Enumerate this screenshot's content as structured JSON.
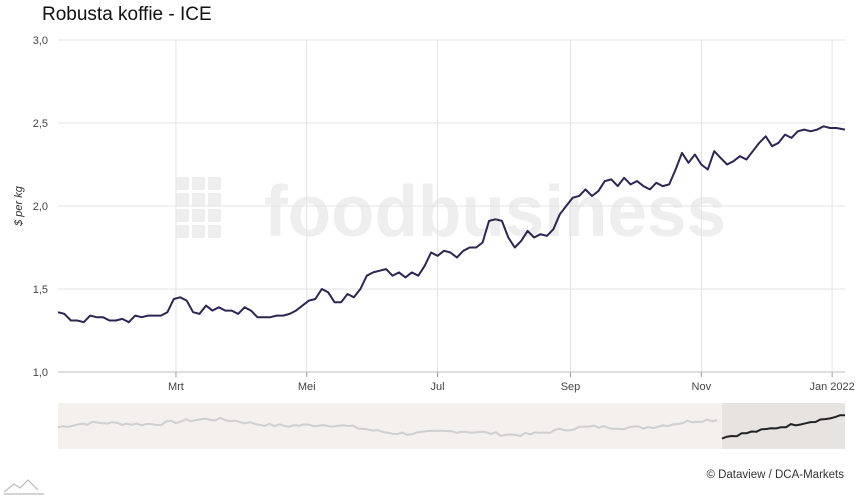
{
  "header": {
    "title": "Robusta koffie - ICE"
  },
  "watermark": {
    "text": "foodbusiness"
  },
  "footer": {
    "credit": "© Dataview / DCA-Markets"
  },
  "colors": {
    "line": "#2f2552",
    "grid": "#e3e3e3",
    "navigator_bg": "#f3f0ee",
    "navigator_selected": "#e6e3e1",
    "navigator_line_dim": "#cfcfcf",
    "navigator_line_sel": "#222222"
  },
  "chart_data": {
    "type": "line",
    "title": "Robusta koffie - ICE",
    "ylabel": "$ per kg",
    "xlabel": "",
    "ylim": [
      1.0,
      3.0
    ],
    "y_ticks": [
      "1,0",
      "1,5",
      "2,0",
      "2,5",
      "3,0"
    ],
    "y_tick_values": [
      1.0,
      1.5,
      2.0,
      2.5,
      3.0
    ],
    "x_range": [
      "2021-01-05",
      "2022-01-07"
    ],
    "x_ticks": [
      {
        "label": "Mrt",
        "date": "2021-03-01"
      },
      {
        "label": "Mei",
        "date": "2021-05-01"
      },
      {
        "label": "Jul",
        "date": "2021-07-01"
      },
      {
        "label": "Sep",
        "date": "2021-09-01"
      },
      {
        "label": "Nov",
        "date": "2021-11-01"
      },
      {
        "label": "Jan 2022",
        "date": "2022-01-01"
      }
    ],
    "grid": true,
    "legend": "none",
    "series": [
      {
        "values": [
          [
            "2021-01-05",
            1.36
          ],
          [
            "2021-01-08",
            1.35
          ],
          [
            "2021-01-11",
            1.31
          ],
          [
            "2021-01-14",
            1.31
          ],
          [
            "2021-01-17",
            1.3
          ],
          [
            "2021-01-20",
            1.34
          ],
          [
            "2021-01-23",
            1.33
          ],
          [
            "2021-01-26",
            1.33
          ],
          [
            "2021-01-29",
            1.31
          ],
          [
            "2021-02-01",
            1.31
          ],
          [
            "2021-02-04",
            1.32
          ],
          [
            "2021-02-07",
            1.3
          ],
          [
            "2021-02-10",
            1.34
          ],
          [
            "2021-02-13",
            1.33
          ],
          [
            "2021-02-16",
            1.34
          ],
          [
            "2021-02-19",
            1.34
          ],
          [
            "2021-02-22",
            1.34
          ],
          [
            "2021-02-25",
            1.36
          ],
          [
            "2021-02-28",
            1.44
          ],
          [
            "2021-03-03",
            1.45
          ],
          [
            "2021-03-06",
            1.43
          ],
          [
            "2021-03-09",
            1.36
          ],
          [
            "2021-03-12",
            1.35
          ],
          [
            "2021-03-15",
            1.4
          ],
          [
            "2021-03-18",
            1.37
          ],
          [
            "2021-03-21",
            1.39
          ],
          [
            "2021-03-24",
            1.37
          ],
          [
            "2021-03-27",
            1.37
          ],
          [
            "2021-03-30",
            1.35
          ],
          [
            "2021-04-02",
            1.39
          ],
          [
            "2021-04-05",
            1.37
          ],
          [
            "2021-04-08",
            1.33
          ],
          [
            "2021-04-11",
            1.33
          ],
          [
            "2021-04-14",
            1.33
          ],
          [
            "2021-04-17",
            1.34
          ],
          [
            "2021-04-20",
            1.34
          ],
          [
            "2021-04-23",
            1.35
          ],
          [
            "2021-04-26",
            1.37
          ],
          [
            "2021-04-29",
            1.4
          ],
          [
            "2021-05-02",
            1.43
          ],
          [
            "2021-05-05",
            1.44
          ],
          [
            "2021-05-08",
            1.5
          ],
          [
            "2021-05-11",
            1.48
          ],
          [
            "2021-05-14",
            1.42
          ],
          [
            "2021-05-17",
            1.42
          ],
          [
            "2021-05-20",
            1.47
          ],
          [
            "2021-05-23",
            1.45
          ],
          [
            "2021-05-26",
            1.5
          ],
          [
            "2021-05-29",
            1.58
          ],
          [
            "2021-06-01",
            1.6
          ],
          [
            "2021-06-04",
            1.61
          ],
          [
            "2021-06-07",
            1.62
          ],
          [
            "2021-06-10",
            1.58
          ],
          [
            "2021-06-13",
            1.6
          ],
          [
            "2021-06-16",
            1.57
          ],
          [
            "2021-06-19",
            1.6
          ],
          [
            "2021-06-22",
            1.58
          ],
          [
            "2021-06-25",
            1.64
          ],
          [
            "2021-06-28",
            1.72
          ],
          [
            "2021-07-01",
            1.7
          ],
          [
            "2021-07-04",
            1.73
          ],
          [
            "2021-07-07",
            1.72
          ],
          [
            "2021-07-10",
            1.69
          ],
          [
            "2021-07-13",
            1.73
          ],
          [
            "2021-07-16",
            1.75
          ],
          [
            "2021-07-19",
            1.75
          ],
          [
            "2021-07-22",
            1.78
          ],
          [
            "2021-07-25",
            1.91
          ],
          [
            "2021-07-28",
            1.92
          ],
          [
            "2021-07-31",
            1.91
          ],
          [
            "2021-08-03",
            1.81
          ],
          [
            "2021-08-06",
            1.75
          ],
          [
            "2021-08-09",
            1.79
          ],
          [
            "2021-08-12",
            1.85
          ],
          [
            "2021-08-15",
            1.81
          ],
          [
            "2021-08-18",
            1.83
          ],
          [
            "2021-08-21",
            1.82
          ],
          [
            "2021-08-24",
            1.86
          ],
          [
            "2021-08-27",
            1.95
          ],
          [
            "2021-08-30",
            2.0
          ],
          [
            "2021-09-02",
            2.05
          ],
          [
            "2021-09-05",
            2.06
          ],
          [
            "2021-09-08",
            2.1
          ],
          [
            "2021-09-11",
            2.06
          ],
          [
            "2021-09-14",
            2.09
          ],
          [
            "2021-09-17",
            2.15
          ],
          [
            "2021-09-20",
            2.16
          ],
          [
            "2021-09-23",
            2.12
          ],
          [
            "2021-09-26",
            2.17
          ],
          [
            "2021-09-29",
            2.13
          ],
          [
            "2021-10-02",
            2.15
          ],
          [
            "2021-10-05",
            2.12
          ],
          [
            "2021-10-08",
            2.1
          ],
          [
            "2021-10-11",
            2.14
          ],
          [
            "2021-10-14",
            2.12
          ],
          [
            "2021-10-17",
            2.13
          ],
          [
            "2021-10-20",
            2.22
          ],
          [
            "2021-10-23",
            2.32
          ],
          [
            "2021-10-26",
            2.26
          ],
          [
            "2021-10-29",
            2.31
          ],
          [
            "2021-11-01",
            2.25
          ],
          [
            "2021-11-04",
            2.22
          ],
          [
            "2021-11-07",
            2.33
          ],
          [
            "2021-11-10",
            2.29
          ],
          [
            "2021-11-13",
            2.25
          ],
          [
            "2021-11-16",
            2.27
          ],
          [
            "2021-11-19",
            2.3
          ],
          [
            "2021-11-22",
            2.28
          ],
          [
            "2021-11-25",
            2.33
          ],
          [
            "2021-11-28",
            2.38
          ],
          [
            "2021-12-01",
            2.42
          ],
          [
            "2021-12-04",
            2.36
          ],
          [
            "2021-12-07",
            2.38
          ],
          [
            "2021-12-10",
            2.43
          ],
          [
            "2021-12-13",
            2.41
          ],
          [
            "2021-12-16",
            2.45
          ],
          [
            "2021-12-19",
            2.46
          ],
          [
            "2021-12-22",
            2.45
          ],
          [
            "2021-12-25",
            2.46
          ],
          [
            "2021-12-28",
            2.48
          ],
          [
            "2021-12-31",
            2.47
          ],
          [
            "2022-01-03",
            2.47
          ],
          [
            "2022-01-07",
            2.46
          ]
        ]
      }
    ]
  }
}
